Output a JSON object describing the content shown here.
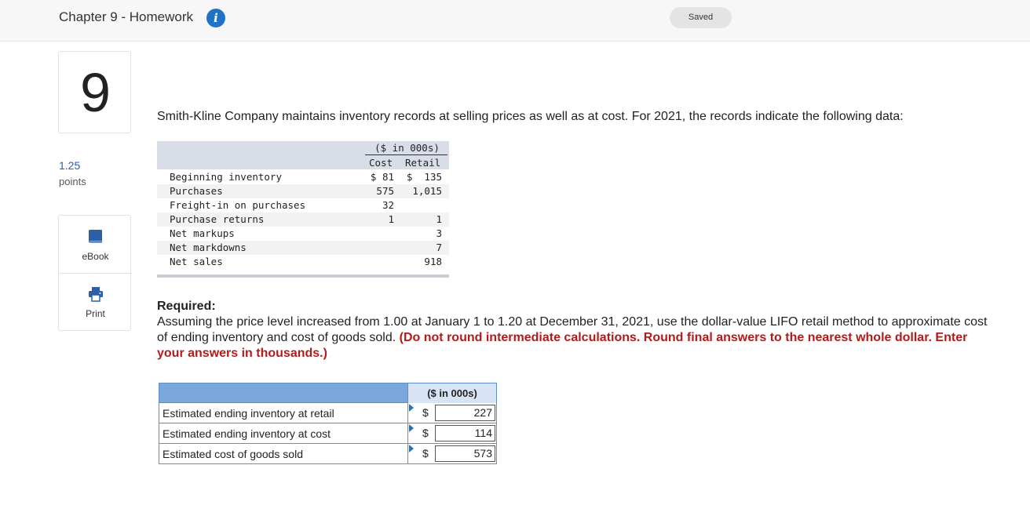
{
  "header": {
    "title": "Chapter 9 - Homework",
    "info_icon": "info-icon",
    "status": "Saved"
  },
  "sidebar": {
    "question_number": "9",
    "points_value": "1.25",
    "points_label": "points",
    "tools": [
      {
        "label": "eBook",
        "icon": "book-icon"
      },
      {
        "label": "Print",
        "icon": "printer-icon"
      }
    ]
  },
  "question": {
    "text": "Smith-Kline Company maintains inventory records at selling prices as well as at cost. For 2021, the records indicate the following data:"
  },
  "data_table": {
    "group_header": "($ in 000s)",
    "col_cost": "Cost",
    "col_retail": "Retail",
    "rows": [
      {
        "label": "Beginning inventory",
        "cost": "$ 81",
        "retail": "$  135"
      },
      {
        "label": "Purchases",
        "cost": "575",
        "retail": "1,015"
      },
      {
        "label": "Freight-in on purchases",
        "cost": "32",
        "retail": ""
      },
      {
        "label": "Purchase returns",
        "cost": "1",
        "retail": "1"
      },
      {
        "label": "Net markups",
        "cost": "",
        "retail": "3"
      },
      {
        "label": "Net markdowns",
        "cost": "",
        "retail": "7"
      },
      {
        "label": "Net sales",
        "cost": "",
        "retail": "918"
      }
    ]
  },
  "required": {
    "title": "Required:",
    "text": "Assuming the price level increased from 1.00 at January 1 to 1.20 at December 31, 2021, use the dollar-value LIFO retail method to approximate cost of ending inventory and cost of goods sold.",
    "instruction": "(Do not round intermediate calculations. Round final answers to the nearest whole dollar. Enter your answers in thousands.)"
  },
  "answer_table": {
    "unit_header": "($ in 000s)",
    "rows": [
      {
        "label": "Estimated ending inventory at retail",
        "currency": "$",
        "value": "227"
      },
      {
        "label": "Estimated ending inventory at cost",
        "currency": "$",
        "value": "114"
      },
      {
        "label": "Estimated cost of goods sold",
        "currency": "$",
        "value": "573"
      }
    ]
  }
}
